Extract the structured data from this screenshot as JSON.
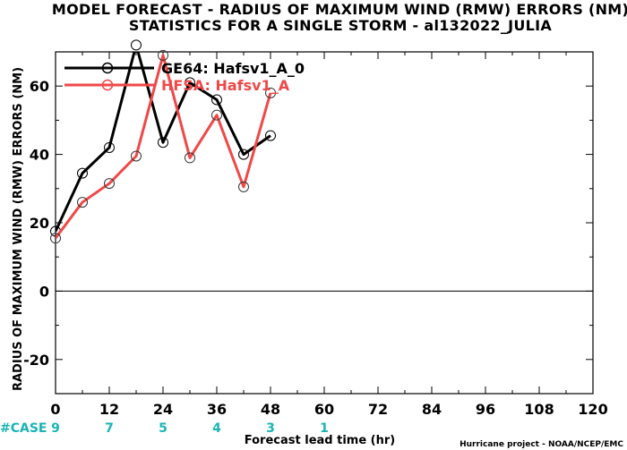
{
  "chart_data": {
    "type": "line",
    "title": "MODEL FORECAST - RADIUS OF MAXIMUM WIND (RMW) ERRORS (NM)",
    "subtitle": "STATISTICS FOR A SINGLE STORM - al132022_JULIA",
    "xlabel": "Forecast lead time (hr)",
    "ylabel": "RADIUS OF MAXIMUM WIND (RMW) ERRORS (NM)",
    "xlim": [
      0,
      120
    ],
    "ylim": [
      -30,
      70
    ],
    "xticks": [
      0,
      12,
      24,
      36,
      48,
      60,
      72,
      84,
      96,
      108,
      120
    ],
    "yticks": [
      -20,
      0,
      20,
      40,
      60
    ],
    "zero_line": true,
    "grid": false,
    "legend_position": "top-left",
    "series": [
      {
        "name": "GE64: Hafsv1_A_0",
        "color": "#000000",
        "x": [
          0,
          6,
          12,
          18,
          24,
          30,
          36,
          42,
          48
        ],
        "y": [
          17.5,
          34.5,
          42,
          72,
          43.5,
          61,
          56,
          40,
          45.5
        ]
      },
      {
        "name": "HFSA: Hafsv1_A",
        "color": "#f04848",
        "x": [
          0,
          6,
          12,
          18,
          24,
          30,
          36,
          42,
          48
        ],
        "y": [
          15.5,
          26,
          31.5,
          39.5,
          69,
          39,
          51.5,
          30.5,
          58
        ]
      }
    ],
    "case_counts": {
      "label": "#CASE",
      "x": [
        0,
        12,
        24,
        36,
        48,
        60
      ],
      "values": [
        "9",
        "7",
        "5",
        "4",
        "3",
        "1"
      ]
    },
    "credit": "Hurricane project - NOAA/NCEP/EMC"
  }
}
